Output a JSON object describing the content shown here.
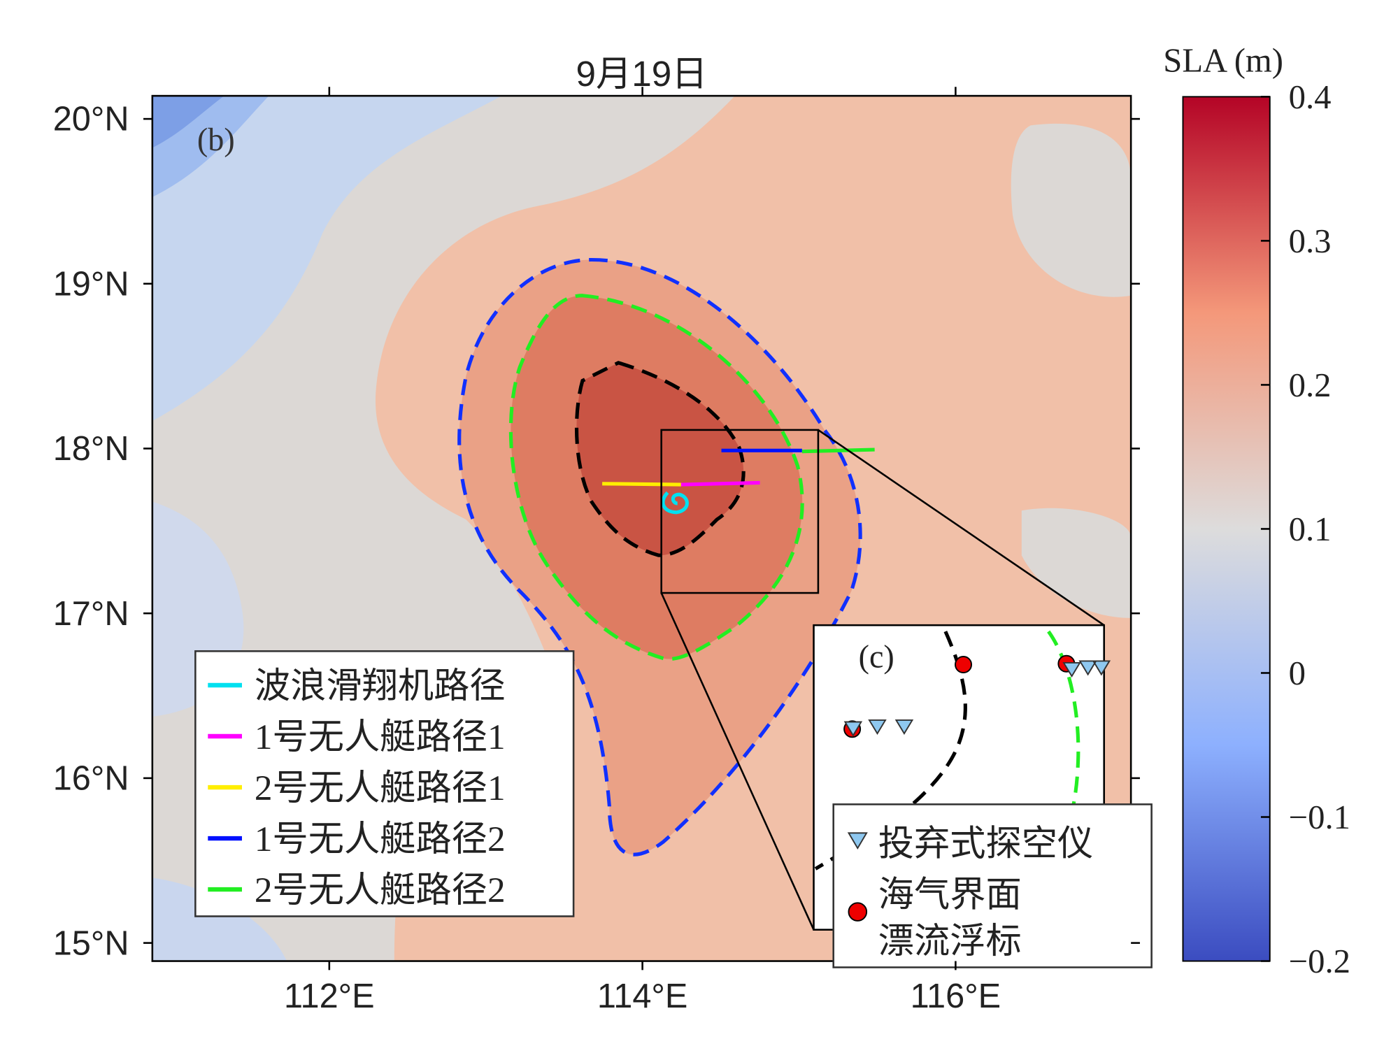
{
  "title": "9月19日",
  "panel_label": "(b)",
  "inset_label": "(c)",
  "axes": {
    "xlim": [
      110.87,
      117.12
    ],
    "ylim": [
      14.89,
      20.14
    ],
    "xticks": [
      {
        "value": 112,
        "label": "112°E"
      },
      {
        "value": 114,
        "label": "114°E"
      },
      {
        "value": 116,
        "label": "116°E"
      }
    ],
    "yticks": [
      {
        "value": 15,
        "label": "15°N"
      },
      {
        "value": 16,
        "label": "16°N"
      },
      {
        "value": 17,
        "label": "17°N"
      },
      {
        "value": 18,
        "label": "18°N"
      },
      {
        "value": 19,
        "label": "19°N"
      },
      {
        "value": 20,
        "label": "20°N"
      }
    ]
  },
  "colorbar": {
    "label": "SLA (m)",
    "lim": [
      -0.2,
      0.4
    ],
    "ticks": [
      {
        "value": -0.2,
        "label": "−0.2"
      },
      {
        "value": -0.1,
        "label": "−0.1"
      },
      0,
      0.1,
      0.2,
      0.3,
      0.4
    ]
  },
  "legend": {
    "entries": [
      {
        "name": "波浪滑翔机路径",
        "color": "#00e0f0"
      },
      {
        "name": "1号无人艇路径1",
        "color": "#ff00ff"
      },
      {
        "name": "2号无人艇路径1",
        "color": "#ffee00"
      },
      {
        "name": "1号无人艇路径2",
        "color": "#0010ff"
      },
      {
        "name": "2号无人艇路径2",
        "color": "#22ee22"
      }
    ]
  },
  "inset_legend": {
    "dropsonde": "投弃式探空仪",
    "buoy_lines": [
      "海气界面",
      "漂流浮标"
    ]
  }
}
